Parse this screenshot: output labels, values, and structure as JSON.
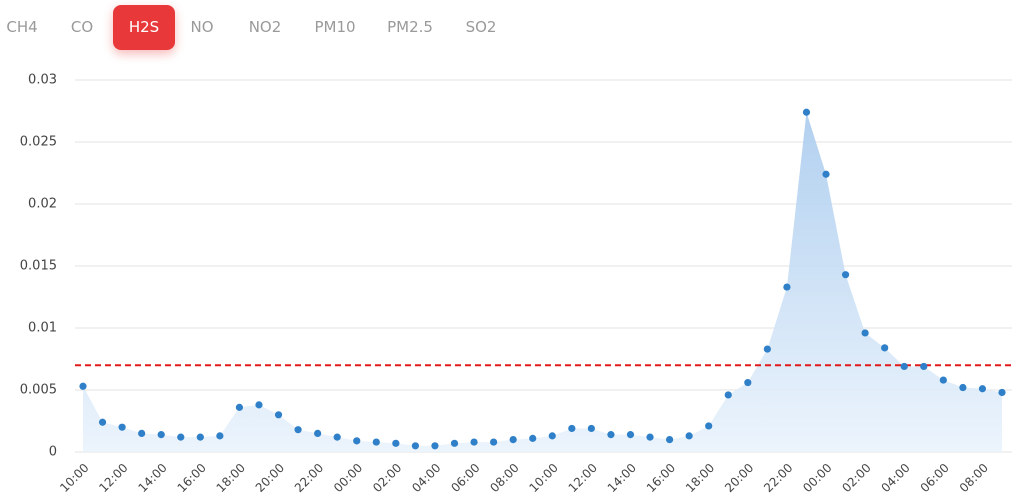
{
  "tabs": [
    {
      "label": "CH4",
      "selected": false
    },
    {
      "label": "CO",
      "selected": false
    },
    {
      "label": "H2S",
      "selected": true
    },
    {
      "label": "NO",
      "selected": false
    },
    {
      "label": "NO2",
      "selected": false
    },
    {
      "label": "PM10",
      "selected": false
    },
    {
      "label": "PM2.5",
      "selected": false
    },
    {
      "label": "SO2",
      "selected": false
    }
  ],
  "chart_data": {
    "type": "area",
    "markers": true,
    "color": "#2f80c8",
    "grid": true,
    "ylim": [
      0,
      0.03
    ],
    "yticks": [
      0,
      0.005,
      0.01,
      0.015,
      0.02,
      0.025,
      0.03
    ],
    "threshold": 0.007,
    "threshold_color": "#e0191b",
    "categories": [
      "10:00",
      null,
      "12:00",
      null,
      "14:00",
      null,
      "16:00",
      null,
      "18:00",
      null,
      "20:00",
      null,
      "22:00",
      null,
      "00:00",
      null,
      "02:00",
      null,
      "04:00",
      null,
      "06:00",
      null,
      "08:00",
      null,
      "10:00",
      null,
      "12:00",
      null,
      "14:00",
      null,
      "16:00",
      null,
      "18:00",
      null,
      "20:00",
      null,
      "22:00",
      null,
      "00:00",
      null,
      "02:00",
      null,
      "04:00",
      null,
      "06:00",
      null,
      "08:00",
      null
    ],
    "values": [
      0.0053,
      0.0024,
      0.002,
      0.0015,
      0.0014,
      0.0012,
      0.0012,
      0.0013,
      0.0036,
      0.0038,
      0.003,
      0.0018,
      0.0015,
      0.0012,
      0.0009,
      0.0008,
      0.0007,
      0.0005,
      0.0005,
      0.0007,
      0.0008,
      0.0008,
      0.001,
      0.0011,
      0.0013,
      0.0019,
      0.0019,
      0.0014,
      0.0014,
      0.0012,
      0.001,
      0.0013,
      0.0021,
      0.0046,
      0.0056,
      0.0083,
      0.0133,
      0.0274,
      0.0224,
      0.0143,
      0.0096,
      0.0084,
      0.0069,
      0.0069,
      0.0058,
      0.0052,
      0.0051,
      0.0048
    ]
  }
}
